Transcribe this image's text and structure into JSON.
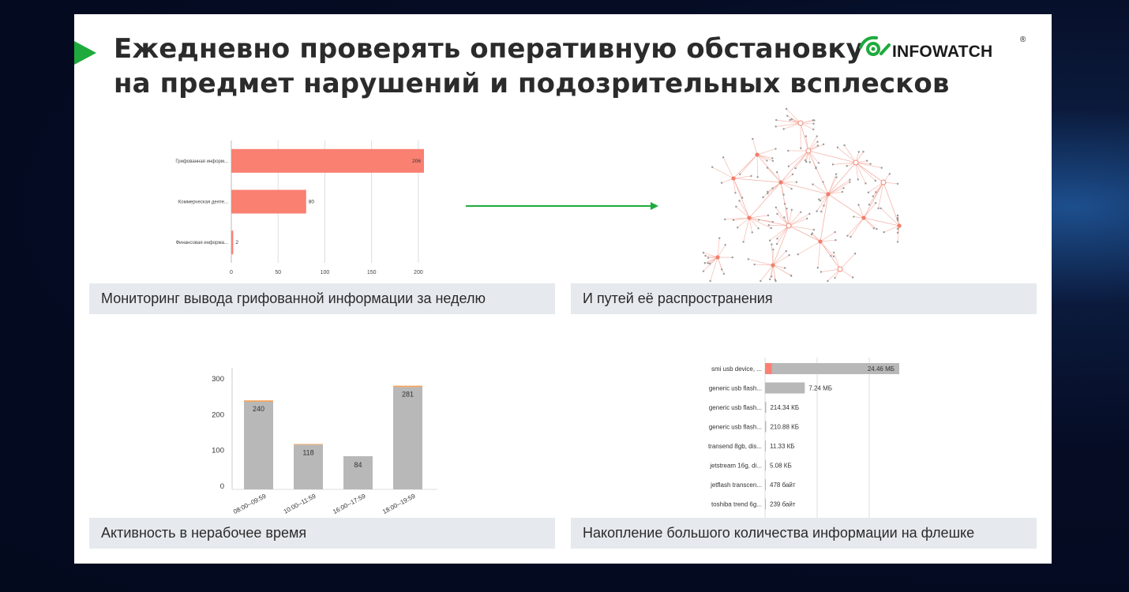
{
  "slide": {
    "title_line1": "Ежедневно проверять оперативную обстановку",
    "title_line2": "на предмет нарушений и подозрительных всплесков",
    "logo_text": "INFOWATCH",
    "logo_reg": "®",
    "accent_color": "#1eaa3c"
  },
  "panels": {
    "top_left_caption": "Мониторинг вывода грифованной информации за неделю",
    "top_right_caption": "И путей её распространения",
    "bottom_left_caption": "Активность в нерабочее время",
    "bottom_right_caption": "Накопление большого количества информации на флешке"
  },
  "chart_data": [
    {
      "type": "bar",
      "orientation": "horizontal",
      "categories": [
        "Грифованная информ...",
        "Коммерческая деяте...",
        "Финансовая информа..."
      ],
      "values": [
        206,
        80,
        2
      ],
      "labels": [
        "206",
        "80",
        "2"
      ],
      "xlim": [
        0,
        206
      ],
      "xticks": [
        "0",
        "50",
        "100",
        "150",
        "200"
      ],
      "color": "#fa8072",
      "grid": true
    },
    {
      "type": "bar",
      "stacked": true,
      "categories": [
        "08:00--09:59",
        "10:00--11:59",
        "16:00--17:59",
        "18:00--19:59"
      ],
      "series": [
        {
          "values": [
            236,
            116,
            84,
            277
          ],
          "color": "#b8b8b8"
        },
        {
          "values": [
            4,
            2,
            0,
            4
          ],
          "color": "#f4a460"
        }
      ],
      "labels": [
        "240",
        "118",
        "84",
        "281"
      ],
      "ylim": [
        0,
        300
      ],
      "yticks": [
        "0",
        "100",
        "200",
        "300"
      ]
    },
    {
      "type": "bar",
      "orientation": "horizontal",
      "categories": [
        "smi usb device, ...",
        "generic usb flash...",
        "generic usb flash...",
        "generic usb flash...",
        "transend 8gb, dis...",
        "jetstream 16g, di...",
        "jetflash transcen...",
        "toshiba trend 6g..."
      ],
      "values_mb": [
        24.46,
        7.24,
        0.2143,
        0.2109,
        0.01133,
        0.00508,
        0.000478,
        0.000239
      ],
      "highlight_fraction_first": 0.05,
      "labels": [
        "24.46 МБ",
        "7.24 МБ",
        "214.34 КБ",
        "210.88 КБ",
        "11.33 КБ",
        "5.08 КБ",
        "478 байт",
        "239 байт"
      ],
      "bar_color": "#b8b8b8",
      "highlight_color": "#fa8072"
    }
  ]
}
